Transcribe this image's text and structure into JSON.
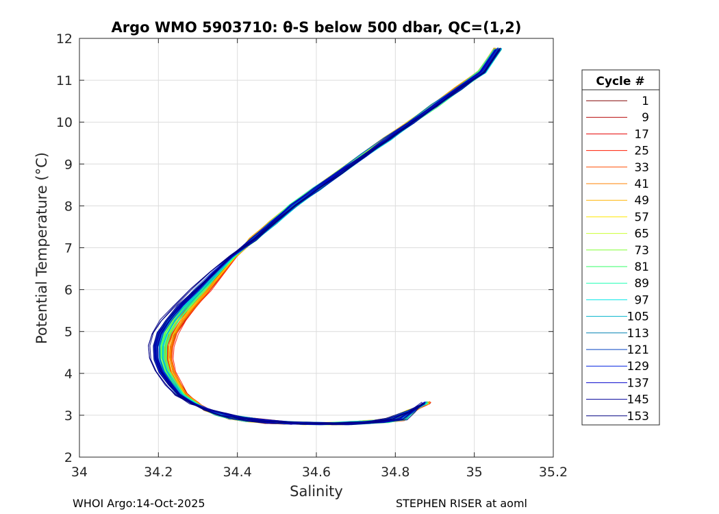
{
  "chart_data": {
    "type": "line",
    "title": "Argo WMO 5903710: θ-S below 500 dbar,  QC=(1,2)",
    "xlabel": "Salinity",
    "ylabel": "Potential Temperature (°C)",
    "xlim": [
      34,
      35.2
    ],
    "ylim": [
      2,
      12
    ],
    "xticks": [
      "34",
      "34.2",
      "34.4",
      "34.6",
      "34.8",
      "35",
      "35.2"
    ],
    "yticks": [
      "2",
      "3",
      "4",
      "5",
      "6",
      "7",
      "8",
      "9",
      "10",
      "11",
      "12"
    ],
    "grid": true,
    "legend_title": "Cycle #",
    "legend_position": "right-outside",
    "series": [
      {
        "name": "1",
        "color": "#800000"
      },
      {
        "name": "9",
        "color": "#b30000"
      },
      {
        "name": "17",
        "color": "#e60000"
      },
      {
        "name": "25",
        "color": "#ff1a00"
      },
      {
        "name": "33",
        "color": "#ff4d00"
      },
      {
        "name": "41",
        "color": "#ff8000"
      },
      {
        "name": "49",
        "color": "#ffb300"
      },
      {
        "name": "57",
        "color": "#ffe600"
      },
      {
        "name": "65",
        "color": "#ccff33"
      },
      {
        "name": "73",
        "color": "#80ff33"
      },
      {
        "name": "81",
        "color": "#33ff66"
      },
      {
        "name": "89",
        "color": "#1affb3"
      },
      {
        "name": "97",
        "color": "#00e6e6"
      },
      {
        "name": "105",
        "color": "#00b3cc"
      },
      {
        "name": "113",
        "color": "#0080b3"
      },
      {
        "name": "121",
        "color": "#0040c0"
      },
      {
        "name": "129",
        "color": "#0020e0"
      },
      {
        "name": "137",
        "color": "#0000cc"
      },
      {
        "name": "145",
        "color": "#00009a"
      },
      {
        "name": "153",
        "color": "#000080"
      }
    ],
    "profile_shape": {
      "salinity": [
        34.88,
        34.84,
        34.8,
        34.75,
        34.7,
        34.65,
        34.6,
        34.55,
        34.5,
        34.45,
        34.4,
        34.36,
        34.32,
        34.29,
        34.26,
        34.24,
        34.22,
        34.21,
        34.21,
        34.22,
        34.24,
        34.27,
        34.31,
        34.35,
        34.39,
        34.44,
        34.49,
        34.54,
        34.6,
        34.66,
        34.72,
        34.78,
        34.84,
        34.9,
        34.96,
        35.02,
        35.06
      ],
      "theta": [
        3.3,
        3.1,
        2.9,
        2.85,
        2.82,
        2.8,
        2.8,
        2.81,
        2.83,
        2.87,
        2.93,
        3.02,
        3.14,
        3.3,
        3.5,
        3.75,
        4.05,
        4.35,
        4.65,
        4.95,
        5.25,
        5.6,
        6.0,
        6.4,
        6.8,
        7.2,
        7.6,
        8.0,
        8.4,
        8.8,
        9.2,
        9.6,
        10.0,
        10.4,
        10.8,
        11.2,
        11.75
      ]
    }
  },
  "footer": {
    "left": "WHOI Argo:14-Oct-2025",
    "right": "STEPHEN RISER at aoml"
  }
}
